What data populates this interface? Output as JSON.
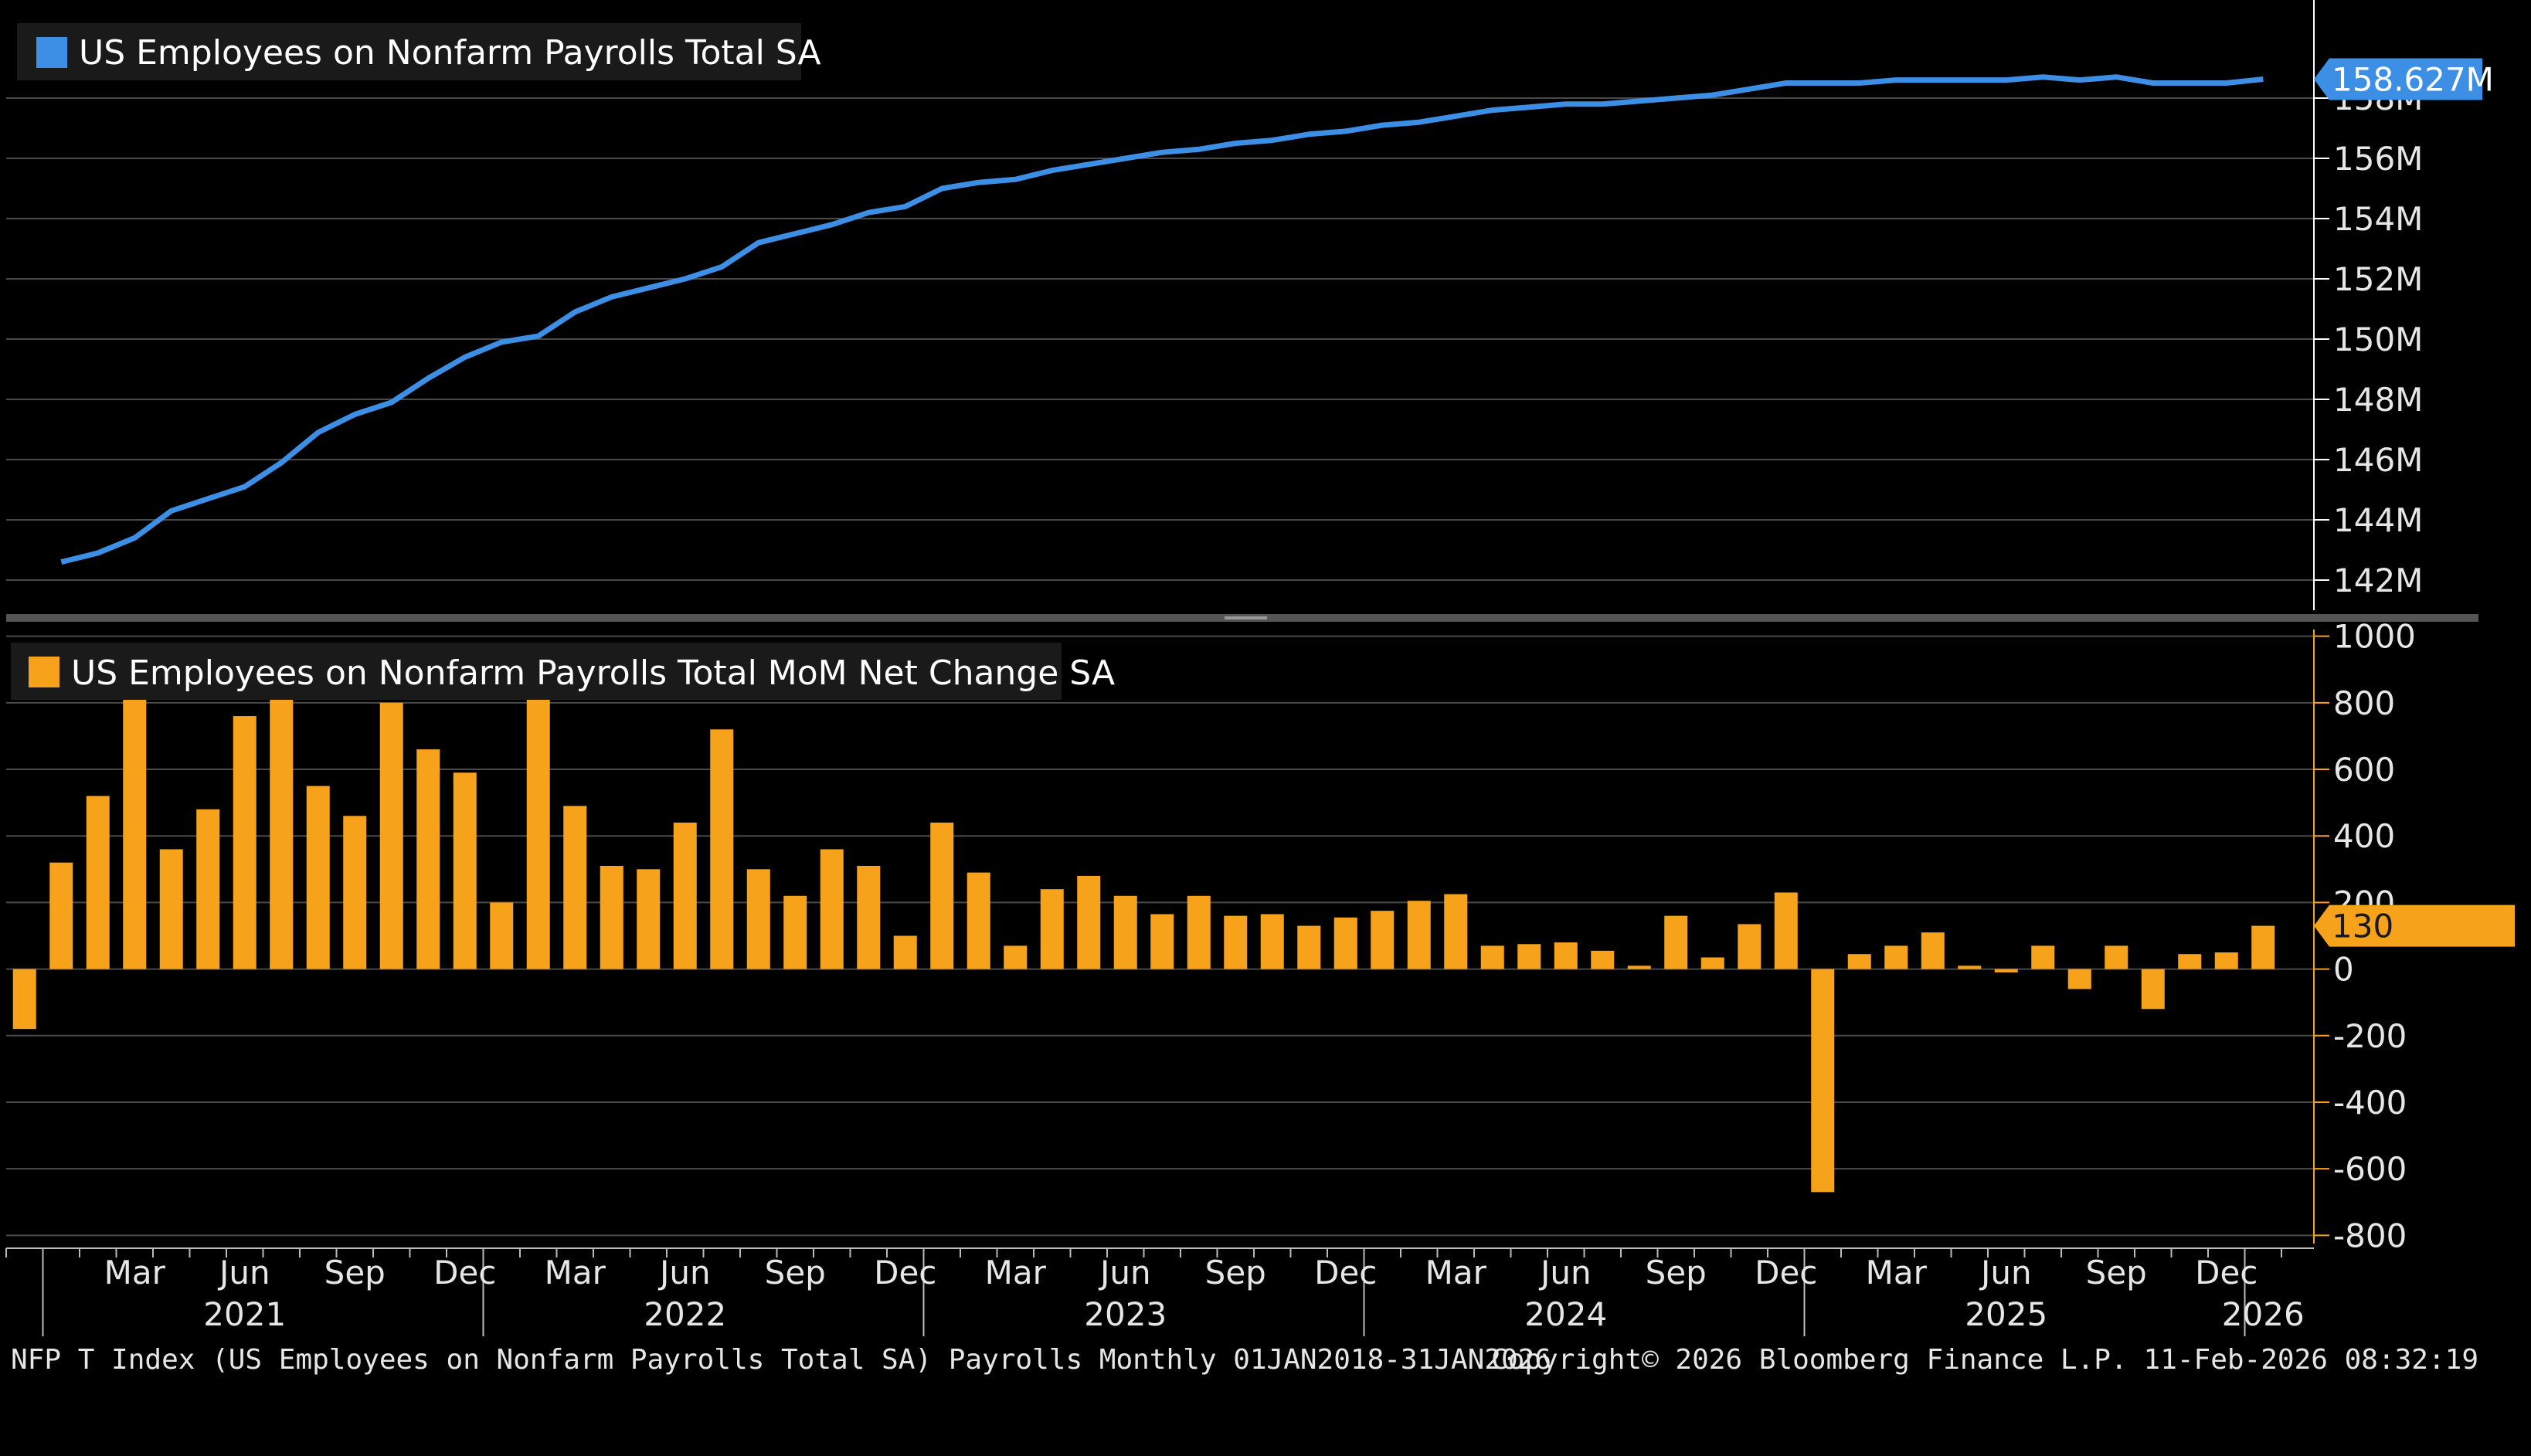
{
  "chart_data": [
    {
      "type": "line",
      "legend": "US Employees on Nonfarm Payrolls Total SA",
      "color": "#3d8fe6",
      "last_value_label": "158.627M",
      "y_ticks": [
        142,
        144,
        146,
        148,
        150,
        152,
        154,
        156,
        158
      ],
      "y_tick_labels": [
        "142M",
        "144M",
        "146M",
        "148M",
        "150M",
        "152M",
        "154M",
        "156M",
        "158M"
      ],
      "ylim": [
        141,
        161
      ],
      "grid": true,
      "legend_position": "top-left",
      "x": [
        "2021-01",
        "2021-02",
        "2021-03",
        "2021-04",
        "2021-05",
        "2021-06",
        "2021-07",
        "2021-08",
        "2021-09",
        "2021-10",
        "2021-11",
        "2021-12",
        "2022-01",
        "2022-02",
        "2022-03",
        "2022-04",
        "2022-05",
        "2022-06",
        "2022-07",
        "2022-08",
        "2022-09",
        "2022-10",
        "2022-11",
        "2022-12",
        "2023-01",
        "2023-02",
        "2023-03",
        "2023-04",
        "2023-05",
        "2023-06",
        "2023-07",
        "2023-08",
        "2023-09",
        "2023-10",
        "2023-11",
        "2023-12",
        "2024-01",
        "2024-02",
        "2024-03",
        "2024-04",
        "2024-05",
        "2024-06",
        "2024-07",
        "2024-08",
        "2024-09",
        "2024-10",
        "2024-11",
        "2024-12",
        "2025-01",
        "2025-02",
        "2025-03",
        "2025-04",
        "2025-05",
        "2025-06",
        "2025-07",
        "2025-08",
        "2025-09",
        "2025-10",
        "2025-11",
        "2025-12",
        "2026-01"
      ],
      "values": [
        142.6,
        142.9,
        143.4,
        144.3,
        144.7,
        145.1,
        145.9,
        146.9,
        147.5,
        147.9,
        148.7,
        149.4,
        149.9,
        150.1,
        150.9,
        151.4,
        151.7,
        152.0,
        152.4,
        153.2,
        153.5,
        153.8,
        154.2,
        154.4,
        155.0,
        155.2,
        155.3,
        155.6,
        155.8,
        156.0,
        156.2,
        156.3,
        156.5,
        156.6,
        156.8,
        156.9,
        157.1,
        157.2,
        157.4,
        157.6,
        157.7,
        157.8,
        157.8,
        157.9,
        158.0,
        158.1,
        158.3,
        158.5,
        158.5,
        158.5,
        158.6,
        158.6,
        158.6,
        158.6,
        158.7,
        158.6,
        158.7,
        158.5,
        158.5,
        158.5,
        158.627
      ]
    },
    {
      "type": "bar",
      "legend": "US Employees on Nonfarm Payrolls Total MoM Net Change SA",
      "color": "#f7a21b",
      "last_value_label": "130",
      "y_ticks": [
        -800,
        -600,
        -400,
        -200,
        0,
        200,
        400,
        600,
        800,
        1000
      ],
      "y_tick_labels": [
        "-800",
        "-600",
        "-400",
        "-200",
        "0",
        "200",
        "400",
        "600",
        "800",
        "1000"
      ],
      "ylim": [
        -820,
        1020
      ],
      "grid": true,
      "legend_position": "top-left",
      "x": [
        "2020-12",
        "2021-01",
        "2021-02",
        "2021-03",
        "2021-04",
        "2021-05",
        "2021-06",
        "2021-07",
        "2021-08",
        "2021-09",
        "2021-10",
        "2021-11",
        "2021-12",
        "2022-01",
        "2022-02",
        "2022-03",
        "2022-04",
        "2022-05",
        "2022-06",
        "2022-07",
        "2022-08",
        "2022-09",
        "2022-10",
        "2022-11",
        "2022-12",
        "2023-01",
        "2023-02",
        "2023-03",
        "2023-04",
        "2023-05",
        "2023-06",
        "2023-07",
        "2023-08",
        "2023-09",
        "2023-10",
        "2023-11",
        "2023-12",
        "2024-01",
        "2024-02",
        "2024-03",
        "2024-04",
        "2024-05",
        "2024-06",
        "2024-07",
        "2024-08",
        "2024-09",
        "2024-10",
        "2024-11",
        "2024-12",
        "2025-01",
        "2025-02",
        "2025-03",
        "2025-04",
        "2025-05",
        "2025-06",
        "2025-07",
        "2025-08",
        "2025-09",
        "2025-10",
        "2025-11",
        "2025-12",
        "2026-01"
      ],
      "values": [
        -180,
        320,
        520,
        850,
        360,
        480,
        760,
        940,
        550,
        460,
        800,
        660,
        590,
        200,
        820,
        490,
        310,
        300,
        440,
        720,
        300,
        220,
        360,
        310,
        100,
        440,
        290,
        70,
        240,
        280,
        220,
        165,
        220,
        160,
        165,
        130,
        155,
        175,
        205,
        225,
        70,
        75,
        80,
        55,
        10,
        160,
        35,
        135,
        230,
        -670,
        45,
        70,
        110,
        10,
        -10,
        70,
        -60,
        70,
        -120,
        45,
        50,
        130
      ]
    }
  ],
  "x_axis": {
    "month_labels": [
      {
        "month": "2021-03",
        "label": "Mar"
      },
      {
        "month": "2021-06",
        "label": "Jun"
      },
      {
        "month": "2021-09",
        "label": "Sep"
      },
      {
        "month": "2021-12",
        "label": "Dec"
      },
      {
        "month": "2022-03",
        "label": "Mar"
      },
      {
        "month": "2022-06",
        "label": "Jun"
      },
      {
        "month": "2022-09",
        "label": "Sep"
      },
      {
        "month": "2022-12",
        "label": "Dec"
      },
      {
        "month": "2023-03",
        "label": "Mar"
      },
      {
        "month": "2023-06",
        "label": "Jun"
      },
      {
        "month": "2023-09",
        "label": "Sep"
      },
      {
        "month": "2023-12",
        "label": "Dec"
      },
      {
        "month": "2024-03",
        "label": "Mar"
      },
      {
        "month": "2024-06",
        "label": "Jun"
      },
      {
        "month": "2024-09",
        "label": "Sep"
      },
      {
        "month": "2024-12",
        "label": "Dec"
      },
      {
        "month": "2025-03",
        "label": "Mar"
      },
      {
        "month": "2025-06",
        "label": "Jun"
      },
      {
        "month": "2025-09",
        "label": "Sep"
      },
      {
        "month": "2025-12",
        "label": "Dec"
      }
    ],
    "year_labels": [
      {
        "month": "2021-06",
        "label": "2021"
      },
      {
        "month": "2022-06",
        "label": "2022"
      },
      {
        "month": "2023-06",
        "label": "2023"
      },
      {
        "month": "2024-06",
        "label": "2024"
      },
      {
        "month": "2025-06",
        "label": "2025"
      },
      {
        "month": "2026-01",
        "label": "2026"
      }
    ]
  },
  "footer": {
    "description": "NFP T Index (US Employees on Nonfarm Payrolls Total SA) Payrolls Monthly 01JAN2018-31JAN2026",
    "copyright": "Copyright© 2026 Bloomberg Finance L.P.",
    "timestamp": "11-Feb-2026 08:32:19"
  }
}
